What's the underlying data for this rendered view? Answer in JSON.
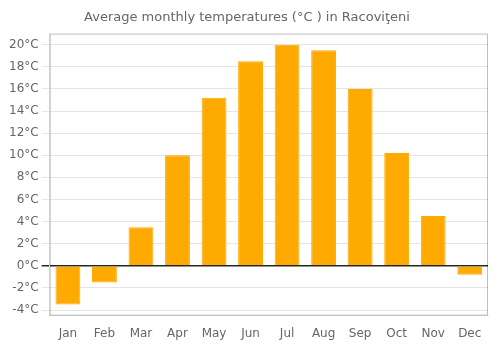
{
  "chart_data": {
    "type": "bar",
    "title": "Average monthly temperatures (°C ) in Racoviţeni",
    "categories": [
      "Jan",
      "Feb",
      "Mar",
      "Apr",
      "May",
      "Jun",
      "Jul",
      "Aug",
      "Sep",
      "Oct",
      "Nov",
      "Dec"
    ],
    "values": [
      -3.5,
      -1.5,
      3.5,
      10.0,
      15.2,
      18.5,
      20.0,
      19.5,
      16.0,
      10.2,
      4.5,
      -0.8
    ],
    "color": "#FFAA00",
    "ylim": [
      -4.5,
      21
    ],
    "yticks": [
      {
        "value": -4,
        "label": "-4°C"
      },
      {
        "value": -2,
        "label": "-2°C"
      },
      {
        "value": 0,
        "label": "0°C"
      },
      {
        "value": 2,
        "label": "2°C"
      },
      {
        "value": 4,
        "label": "4°C"
      },
      {
        "value": 6,
        "label": "6°C"
      },
      {
        "value": 8,
        "label": "8°C"
      },
      {
        "value": 10,
        "label": "10°C"
      },
      {
        "value": 12,
        "label": "12°C"
      },
      {
        "value": 14,
        "label": "14°C"
      },
      {
        "value": 16,
        "label": "16°C"
      },
      {
        "value": 18,
        "label": "18°C"
      },
      {
        "value": 20,
        "label": "20°C"
      }
    ],
    "grid": true
  }
}
